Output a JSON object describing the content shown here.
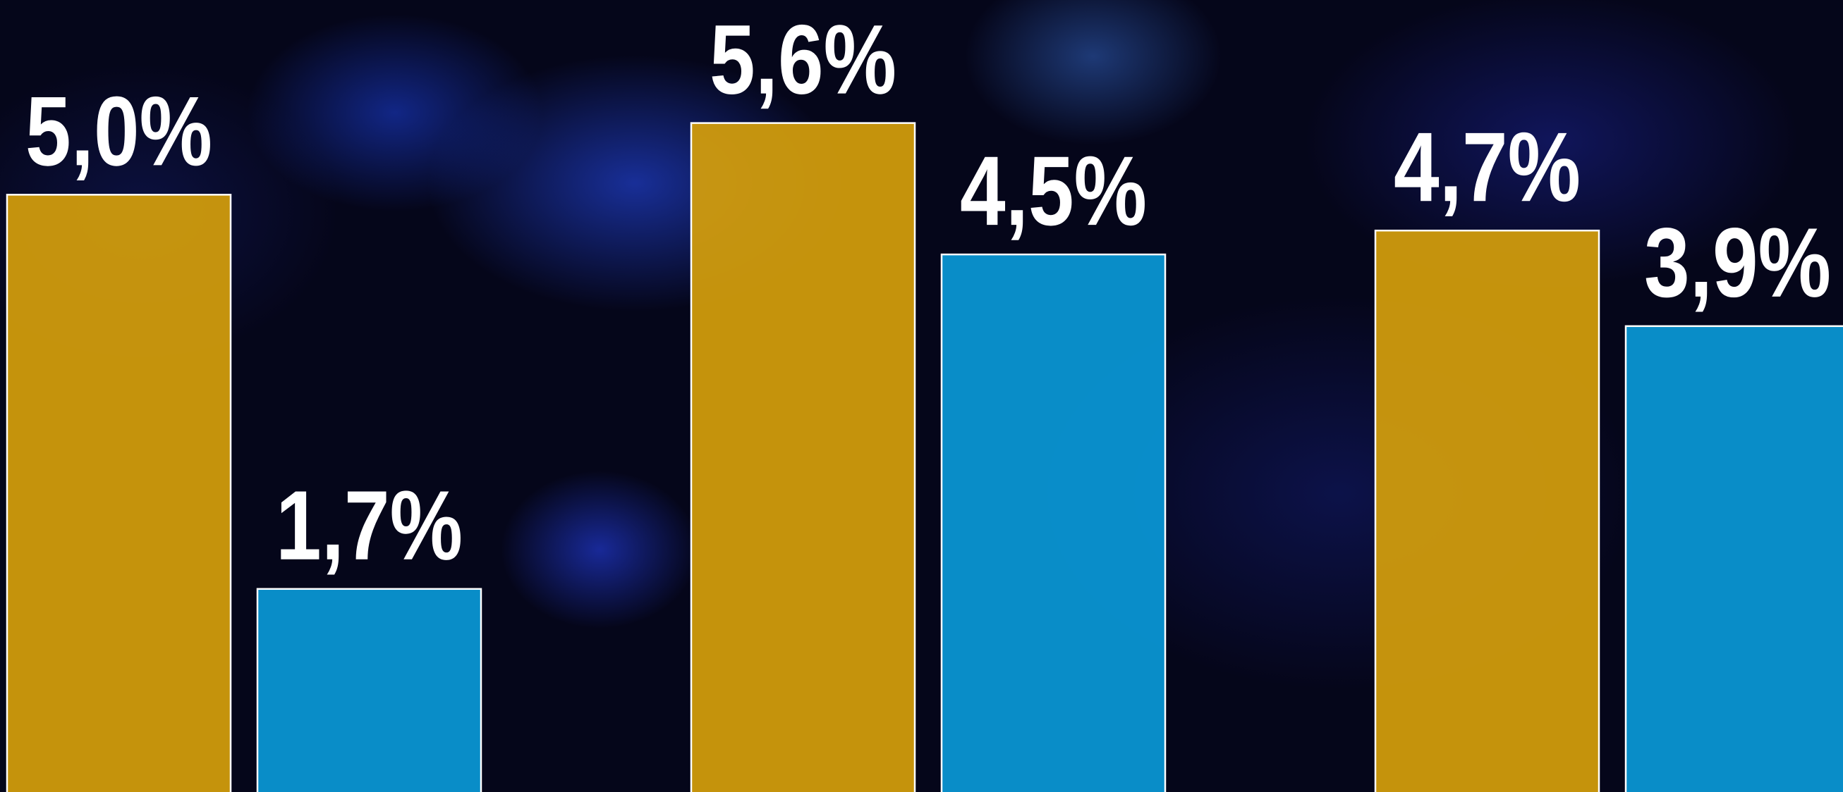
{
  "chart_data": {
    "type": "bar",
    "categories": [
      null,
      null,
      null
    ],
    "series": [
      {
        "color": "#d49e0c",
        "values": [
          5.0,
          5.6,
          4.7
        ],
        "value_labels": [
          "5,0%",
          "5,6%",
          "4,7%"
        ]
      },
      {
        "color": "#0a98d6",
        "values": [
          1.7,
          4.5,
          3.9
        ],
        "value_labels": [
          "1,7%",
          "4,5%",
          "3,9%"
        ]
      }
    ],
    "ylim": [
      0,
      6.63
    ]
  }
}
